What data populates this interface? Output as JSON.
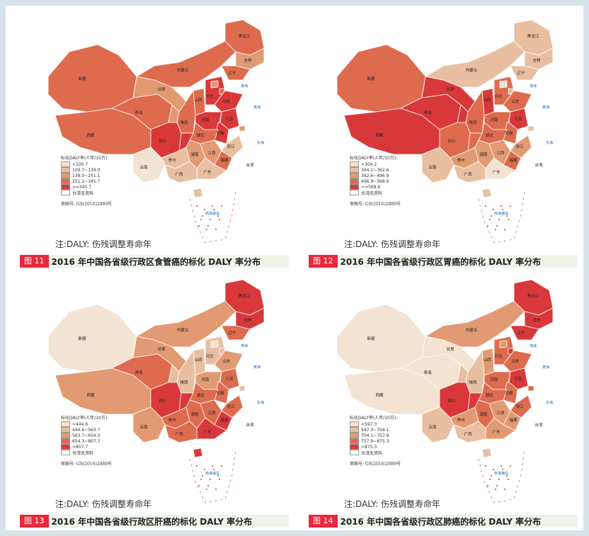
{
  "note_text": "注:DALY: 伤残调整寿命年",
  "approval": "审图号: GS(2016)2889号",
  "legend_title": "标化DALY率(人年/10万):",
  "no_data_label": "台湾无资料",
  "colors": [
    "#f3e3d3",
    "#e8bfa0",
    "#e29a72",
    "#de6b4e",
    "#d9383a",
    "#ffffff"
  ],
  "sea_labels": [
    "渤海",
    "黄海",
    "东海",
    "南海诸岛"
  ],
  "panels": [
    {
      "fig_num": "图 11",
      "title": "2016 年中国各省级行政区食管癌的标化 DALY 率分布",
      "legend": [
        "<100.7",
        "100.7~139.0",
        "139.0~251.1",
        "251.1~345.7",
        ">=345.7"
      ],
      "classes": {
        "xj": 3,
        "xz": 3,
        "qh": 3,
        "gs": 2,
        "nm": 3,
        "hlj": 3,
        "jl": 2,
        "ln": 3,
        "nx": 2,
        "sx": 3,
        "sn": 3,
        "hb": 4,
        "bj": 2,
        "tj": 3,
        "sd": 4,
        "hn": 4,
        "js": 4,
        "ah": 4,
        "hub": 3,
        "sc": 4,
        "cq": 4,
        "gz": 1,
        "yn": 0,
        "hun": 2,
        "jx": 2,
        "zj": 1,
        "fj": 3,
        "gd": 1,
        "gx": 1,
        "sh": 2,
        "hi": 1,
        "tw": 5
      }
    },
    {
      "fig_num": "图 12",
      "title": "2016 年中国各省级行政区胃癌的标化 DALY 率分布",
      "legend": [
        "<304.2",
        "304.2~362.6",
        "362.6~496.9",
        "496.9~568.6",
        ">=568.6"
      ],
      "classes": {
        "xj": 3,
        "xz": 4,
        "qh": 4,
        "gs": 4,
        "nm": 1,
        "hlj": 1,
        "jl": 1,
        "ln": 1,
        "nx": 4,
        "sx": 4,
        "sn": 3,
        "hb": 3,
        "bj": 0,
        "tj": 1,
        "sd": 3,
        "hn": 3,
        "js": 4,
        "ah": 3,
        "hub": 3,
        "sc": 3,
        "cq": 3,
        "gz": 2,
        "yn": 1,
        "hun": 2,
        "jx": 2,
        "zj": 2,
        "fj": 3,
        "gd": 0,
        "gx": 1,
        "sh": 1,
        "hi": 1,
        "tw": 5
      }
    },
    {
      "fig_num": "图 13",
      "title": "2016 年中国各省级行政区肝癌的标化 DALY 率分布",
      "legend": [
        "<444.6",
        "444.6~563.7",
        "563.7~654.3",
        "654.3~807.7",
        ">807.7"
      ],
      "classes": {
        "xj": 0,
        "xz": 2,
        "qh": 3,
        "gs": 2,
        "nm": 2,
        "hlj": 4,
        "jl": 4,
        "ln": 3,
        "nx": 1,
        "sx": 1,
        "sn": 1,
        "hb": 1,
        "bj": 0,
        "tj": 1,
        "sd": 2,
        "hn": 2,
        "js": 3,
        "ah": 3,
        "hub": 3,
        "sc": 4,
        "cq": 4,
        "gz": 3,
        "yn": 2,
        "hun": 3,
        "jx": 3,
        "zj": 3,
        "fj": 4,
        "gd": 4,
        "gx": 3,
        "sh": 1,
        "hi": 4,
        "tw": 5
      }
    },
    {
      "fig_num": "图 14",
      "title": "2016 年中国各省级行政区肺癌的标化 DALY 率分布",
      "legend": [
        "<597.3",
        "597.3~704.1",
        "704.1~757.9",
        "757.9~875.3",
        ">875.3"
      ],
      "classes": {
        "xj": 0,
        "xz": 0,
        "qh": 0,
        "gs": 0,
        "nm": 2,
        "hlj": 4,
        "jl": 4,
        "ln": 4,
        "nx": 1,
        "sx": 2,
        "sn": 1,
        "hb": 3,
        "bj": 2,
        "tj": 4,
        "sd": 3,
        "hn": 3,
        "js": 4,
        "ah": 3,
        "hub": 3,
        "sc": 4,
        "cq": 4,
        "gz": 2,
        "yn": 1,
        "hun": 3,
        "jx": 2,
        "zj": 3,
        "fj": 2,
        "gd": 2,
        "gx": 1,
        "sh": 3,
        "hi": 1,
        "tw": 5
      }
    }
  ],
  "province_labels": {
    "xj": "新疆",
    "xz": "西藏",
    "qh": "青海",
    "gs": "甘肃",
    "nm": "内蒙古",
    "hlj": "黑龙江",
    "jl": "吉林",
    "ln": "辽宁",
    "sx": "山西",
    "sn": "陕西",
    "hb": "河北",
    "sd": "山东",
    "hn": "河南",
    "js": "江苏",
    "ah": "安徽",
    "hub": "湖北",
    "sc": "四川",
    "gz": "贵州",
    "yn": "云南",
    "hun": "湖南",
    "jx": "江西",
    "zj": "浙江",
    "fj": "福建",
    "gd": "广东",
    "gx": "广西",
    "tw": "台湾"
  }
}
